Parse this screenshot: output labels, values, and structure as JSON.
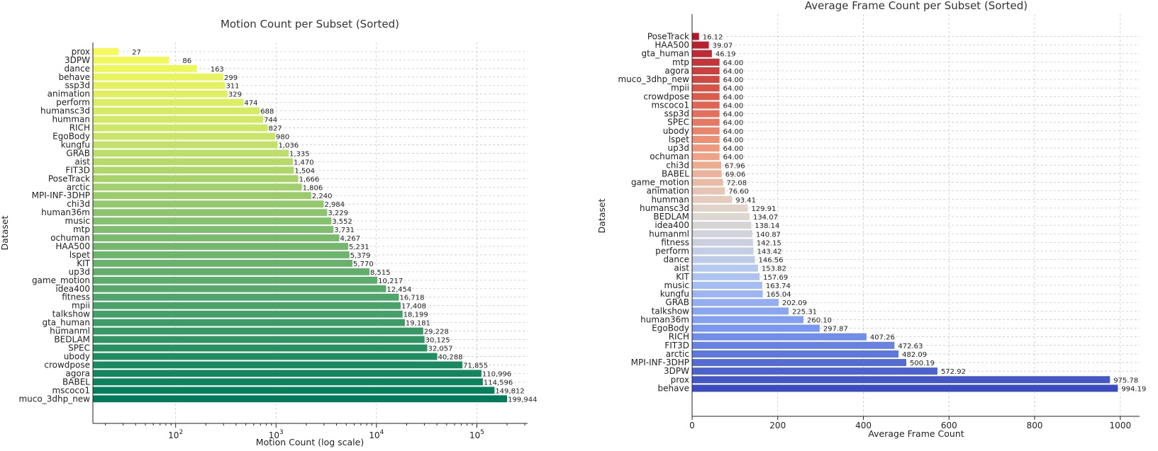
{
  "chart_data": [
    {
      "type": "bar",
      "orientation": "horizontal",
      "title": "Motion Count per Subset (Sorted)",
      "xlabel": "Motion Count (log scale)",
      "ylabel": "Dataset",
      "xscale": "log",
      "xlim": [
        15,
        320000
      ],
      "xticks": [
        100,
        1000,
        10000,
        100000
      ],
      "grid": true,
      "colormap": "summer (yellow to green)",
      "categories": [
        "prox",
        "3DPW",
        "dance",
        "behave",
        "ssp3d",
        "animation",
        "perform",
        "humansc3d",
        "humman",
        "RICH",
        "EgoBody",
        "kungfu",
        "GRAB",
        "aist",
        "FIT3D",
        "PoseTrack",
        "arctic",
        "MPI-INF-3DHP",
        "chi3d",
        "human36m",
        "music",
        "mtp",
        "ochuman",
        "HAA500",
        "lspet",
        "KIT",
        "up3d",
        "game_motion",
        "idea400",
        "fitness",
        "mpii",
        "talkshow",
        "gta_human",
        "humanml",
        "BEDLAM",
        "SPEC",
        "ubody",
        "crowdpose",
        "agora",
        "BABEL",
        "mscoco1",
        "muco_3dhp_new"
      ],
      "values": [
        27,
        86,
        163,
        299,
        311,
        329,
        474,
        688,
        744,
        827,
        980,
        1036,
        1335,
        1470,
        1504,
        1666,
        1806,
        2240,
        2984,
        3229,
        3552,
        3731,
        4267,
        5231,
        5379,
        5770,
        8515,
        10217,
        12454,
        16718,
        17408,
        18199,
        19181,
        29228,
        30125,
        32057,
        40288,
        71855,
        110996,
        114596,
        149812,
        199944
      ],
      "value_labels": [
        "27",
        "86",
        "163",
        "299",
        "311",
        "329",
        "474",
        "688",
        "744",
        "827",
        "980",
        "1,036",
        "1,335",
        "1,470",
        "1,504",
        "1,666",
        "1,806",
        "2,240",
        "2,984",
        "3,229",
        "3,552",
        "3,731",
        "4,267",
        "5,231",
        "5,379",
        "5,770",
        "8,515",
        "10,217",
        "12,454",
        "16,718",
        "17,408",
        "18,199",
        "19,181",
        "29,228",
        "30,125",
        "32,057",
        "40,288",
        "71,855",
        "110,996",
        "114,596",
        "149,812",
        "199,944"
      ]
    },
    {
      "type": "bar",
      "orientation": "horizontal",
      "title": "Average Frame Count per Subset (Sorted)",
      "xlabel": "Average Frame Count",
      "ylabel": "Dataset",
      "xlim": [
        0,
        1045
      ],
      "xticks": [
        0,
        200,
        400,
        600,
        800,
        1000
      ],
      "grid": true,
      "colormap": "coolwarm (red to blue)",
      "categories": [
        "PoseTrack",
        "HAA500",
        "gta_human",
        "mtp",
        "agora",
        "muco_3dhp_new",
        "mpii",
        "crowdpose",
        "mscoco1",
        "ssp3d",
        "SPEC",
        "ubody",
        "lspet",
        "up3d",
        "ochuman",
        "chi3d",
        "BABEL",
        "game_motion",
        "animation",
        "humman",
        "humansc3d",
        "BEDLAM",
        "idea400",
        "humanml",
        "fitness",
        "perform",
        "dance",
        "aist",
        "KIT",
        "music",
        "kungfu",
        "GRAB",
        "talkshow",
        "human36m",
        "EgoBody",
        "RICH",
        "FIT3D",
        "arctic",
        "MPI-INF-3DHP",
        "3DPW",
        "prox",
        "behave"
      ],
      "values": [
        16.12,
        39.07,
        46.19,
        64.0,
        64.0,
        64.0,
        64.0,
        64.0,
        64.0,
        64.0,
        64.0,
        64.0,
        64.0,
        64.0,
        64.0,
        67.96,
        69.06,
        72.08,
        76.6,
        93.41,
        129.91,
        134.07,
        138.14,
        140.87,
        142.15,
        143.42,
        146.56,
        153.82,
        157.69,
        163.74,
        165.04,
        202.09,
        225.31,
        260.1,
        297.87,
        407.26,
        472.63,
        482.09,
        500.19,
        572.92,
        975.78,
        994.19
      ],
      "value_labels": [
        "16.12",
        "39.07",
        "46.19",
        "64.00",
        "64.00",
        "64.00",
        "64.00",
        "64.00",
        "64.00",
        "64.00",
        "64.00",
        "64.00",
        "64.00",
        "64.00",
        "64.00",
        "67.96",
        "69.06",
        "72.08",
        "76.60",
        "93.41",
        "129.91",
        "134.07",
        "138.14",
        "140.87",
        "142.15",
        "143.42",
        "146.56",
        "153.82",
        "157.69",
        "163.74",
        "165.04",
        "202.09",
        "225.31",
        "260.10",
        "297.87",
        "407.26",
        "472.63",
        "482.09",
        "500.19",
        "572.92",
        "975.78",
        "994.19"
      ]
    }
  ]
}
